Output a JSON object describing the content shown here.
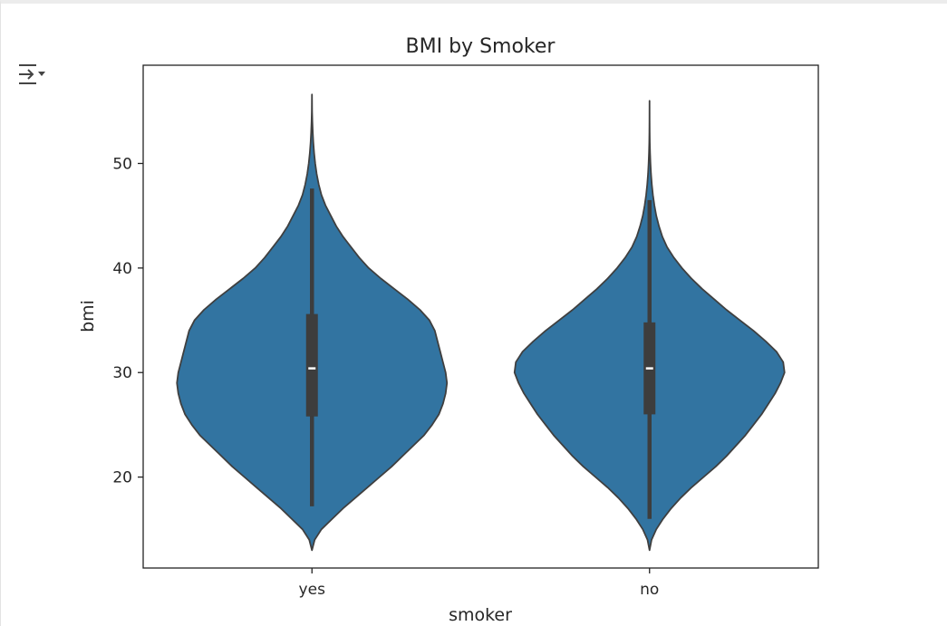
{
  "toolbar": {
    "output_toggle_icon": "collapse-output-icon"
  },
  "chart_data": {
    "type": "violin",
    "title": "BMI by Smoker",
    "xlabel": "smoker",
    "ylabel": "bmi",
    "categories": [
      "yes",
      "no"
    ],
    "ylim": [
      11.3,
      59.4
    ],
    "yticks": [
      20,
      30,
      40,
      50
    ],
    "grid": false,
    "color": "#3274a1",
    "edge_color": "#3f3f3f",
    "box_color": "#3d3d3d",
    "violins": [
      {
        "category": "yes",
        "min": 13.0,
        "max": 56.6,
        "whisker_low": 17.2,
        "whisker_high": 47.6,
        "q1": 25.8,
        "median": 30.4,
        "q3": 35.6,
        "density": [
          [
            13.0,
            0.0
          ],
          [
            14.0,
            0.02
          ],
          [
            15.0,
            0.07
          ],
          [
            16.0,
            0.15
          ],
          [
            17.0,
            0.23
          ],
          [
            18.0,
            0.32
          ],
          [
            19.0,
            0.41
          ],
          [
            20.0,
            0.5
          ],
          [
            21.0,
            0.59
          ],
          [
            22.0,
            0.67
          ],
          [
            23.0,
            0.75
          ],
          [
            24.0,
            0.83
          ],
          [
            25.0,
            0.89
          ],
          [
            26.0,
            0.94
          ],
          [
            27.0,
            0.97
          ],
          [
            28.0,
            0.99
          ],
          [
            29.0,
            1.0
          ],
          [
            30.0,
            0.99
          ],
          [
            31.0,
            0.97
          ],
          [
            32.0,
            0.95
          ],
          [
            33.0,
            0.93
          ],
          [
            34.0,
            0.91
          ],
          [
            35.0,
            0.87
          ],
          [
            36.0,
            0.8
          ],
          [
            37.0,
            0.71
          ],
          [
            38.0,
            0.61
          ],
          [
            39.0,
            0.51
          ],
          [
            40.0,
            0.42
          ],
          [
            41.0,
            0.35
          ],
          [
            42.0,
            0.29
          ],
          [
            43.0,
            0.23
          ],
          [
            44.0,
            0.18
          ],
          [
            45.0,
            0.14
          ],
          [
            46.0,
            0.1
          ],
          [
            47.0,
            0.07
          ],
          [
            48.0,
            0.05
          ],
          [
            49.0,
            0.035
          ],
          [
            50.0,
            0.024
          ],
          [
            51.0,
            0.016
          ],
          [
            52.0,
            0.01
          ],
          [
            53.0,
            0.006
          ],
          [
            54.0,
            0.003
          ],
          [
            55.0,
            0.001
          ],
          [
            56.6,
            0.0
          ]
        ]
      },
      {
        "category": "no",
        "min": 13.0,
        "max": 56.0,
        "whisker_low": 16.0,
        "whisker_high": 46.5,
        "q1": 26.0,
        "median": 30.4,
        "q3": 34.8,
        "density": [
          [
            13.0,
            0.0
          ],
          [
            14.0,
            0.015
          ],
          [
            15.0,
            0.05
          ],
          [
            16.0,
            0.1
          ],
          [
            17.0,
            0.16
          ],
          [
            18.0,
            0.23
          ],
          [
            19.0,
            0.31
          ],
          [
            20.0,
            0.4
          ],
          [
            21.0,
            0.49
          ],
          [
            22.0,
            0.57
          ],
          [
            23.0,
            0.64
          ],
          [
            24.0,
            0.71
          ],
          [
            25.0,
            0.77
          ],
          [
            26.0,
            0.83
          ],
          [
            27.0,
            0.88
          ],
          [
            28.0,
            0.93
          ],
          [
            29.0,
            0.97
          ],
          [
            30.0,
            1.0
          ],
          [
            31.0,
            0.99
          ],
          [
            32.0,
            0.94
          ],
          [
            33.0,
            0.86
          ],
          [
            34.0,
            0.77
          ],
          [
            35.0,
            0.67
          ],
          [
            36.0,
            0.57
          ],
          [
            37.0,
            0.48
          ],
          [
            38.0,
            0.39
          ],
          [
            39.0,
            0.31
          ],
          [
            40.0,
            0.24
          ],
          [
            41.0,
            0.18
          ],
          [
            42.0,
            0.13
          ],
          [
            43.0,
            0.095
          ],
          [
            44.0,
            0.07
          ],
          [
            45.0,
            0.05
          ],
          [
            46.0,
            0.036
          ],
          [
            47.0,
            0.025
          ],
          [
            48.0,
            0.017
          ],
          [
            49.0,
            0.011
          ],
          [
            50.0,
            0.007
          ],
          [
            51.0,
            0.004
          ],
          [
            52.0,
            0.002
          ],
          [
            53.0,
            0.001
          ],
          [
            54.0,
            0.0005
          ],
          [
            56.0,
            0.0
          ]
        ]
      }
    ]
  }
}
